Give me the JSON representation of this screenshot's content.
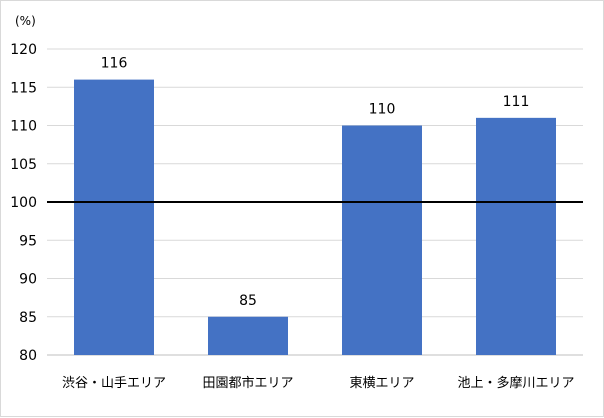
{
  "chart_data": {
    "type": "bar",
    "unit": "(%)",
    "categories": [
      "渋谷・山手エリア",
      "田園都市エリア",
      "東横エリア",
      "池上・多摩川エリア"
    ],
    "values": [
      116,
      85,
      110,
      111
    ],
    "value_labels": [
      "116",
      "85",
      "110",
      "111"
    ],
    "ylim": [
      80,
      120
    ],
    "yticks": [
      "80",
      "85",
      "90",
      "95",
      "100",
      "105",
      "110",
      "115",
      "120"
    ],
    "reference_line": 100,
    "grid": true,
    "colors": {
      "bar": "#4472c4",
      "grid": "#d9d9d9",
      "reference_line": "#000000",
      "axis": "#bfbfbf"
    }
  }
}
